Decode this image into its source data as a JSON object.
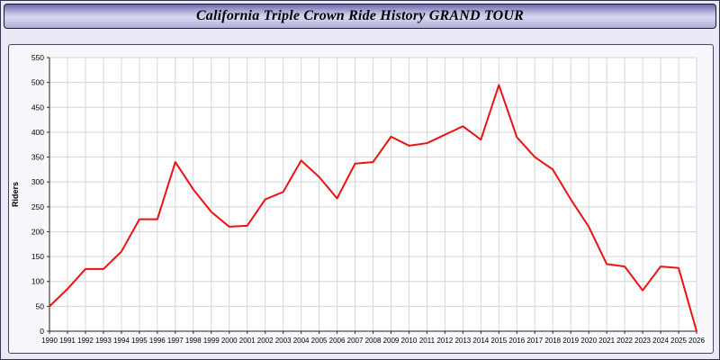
{
  "header": {
    "title": "California Triple Crown Ride History GRAND TOUR"
  },
  "chart_data": {
    "type": "line",
    "title": "California Triple Crown Ride History GRAND TOUR",
    "xlabel": "",
    "ylabel": "Riders",
    "ylim": [
      0,
      550
    ],
    "ytick_step": 50,
    "grid": true,
    "legend": "none",
    "line_color": "#ee1111",
    "grid_color": "#d6d6d6",
    "plot_bg": "#ffffff",
    "x": [
      1990,
      1991,
      1992,
      1993,
      1994,
      1995,
      1996,
      1997,
      1998,
      1999,
      2000,
      2001,
      2002,
      2003,
      2004,
      2005,
      2006,
      2007,
      2008,
      2009,
      2010,
      2011,
      2012,
      2013,
      2014,
      2015,
      2016,
      2017,
      2018,
      2019,
      2020,
      2021,
      2022,
      2023,
      2024,
      2025,
      2026
    ],
    "values": [
      50,
      85,
      125,
      125,
      160,
      225,
      225,
      340,
      285,
      240,
      210,
      212,
      265,
      280,
      343,
      310,
      267,
      337,
      340,
      391,
      373,
      378,
      395,
      412,
      385,
      495,
      390,
      350,
      325,
      265,
      210,
      135,
      130,
      82,
      130,
      127,
      0
    ]
  }
}
